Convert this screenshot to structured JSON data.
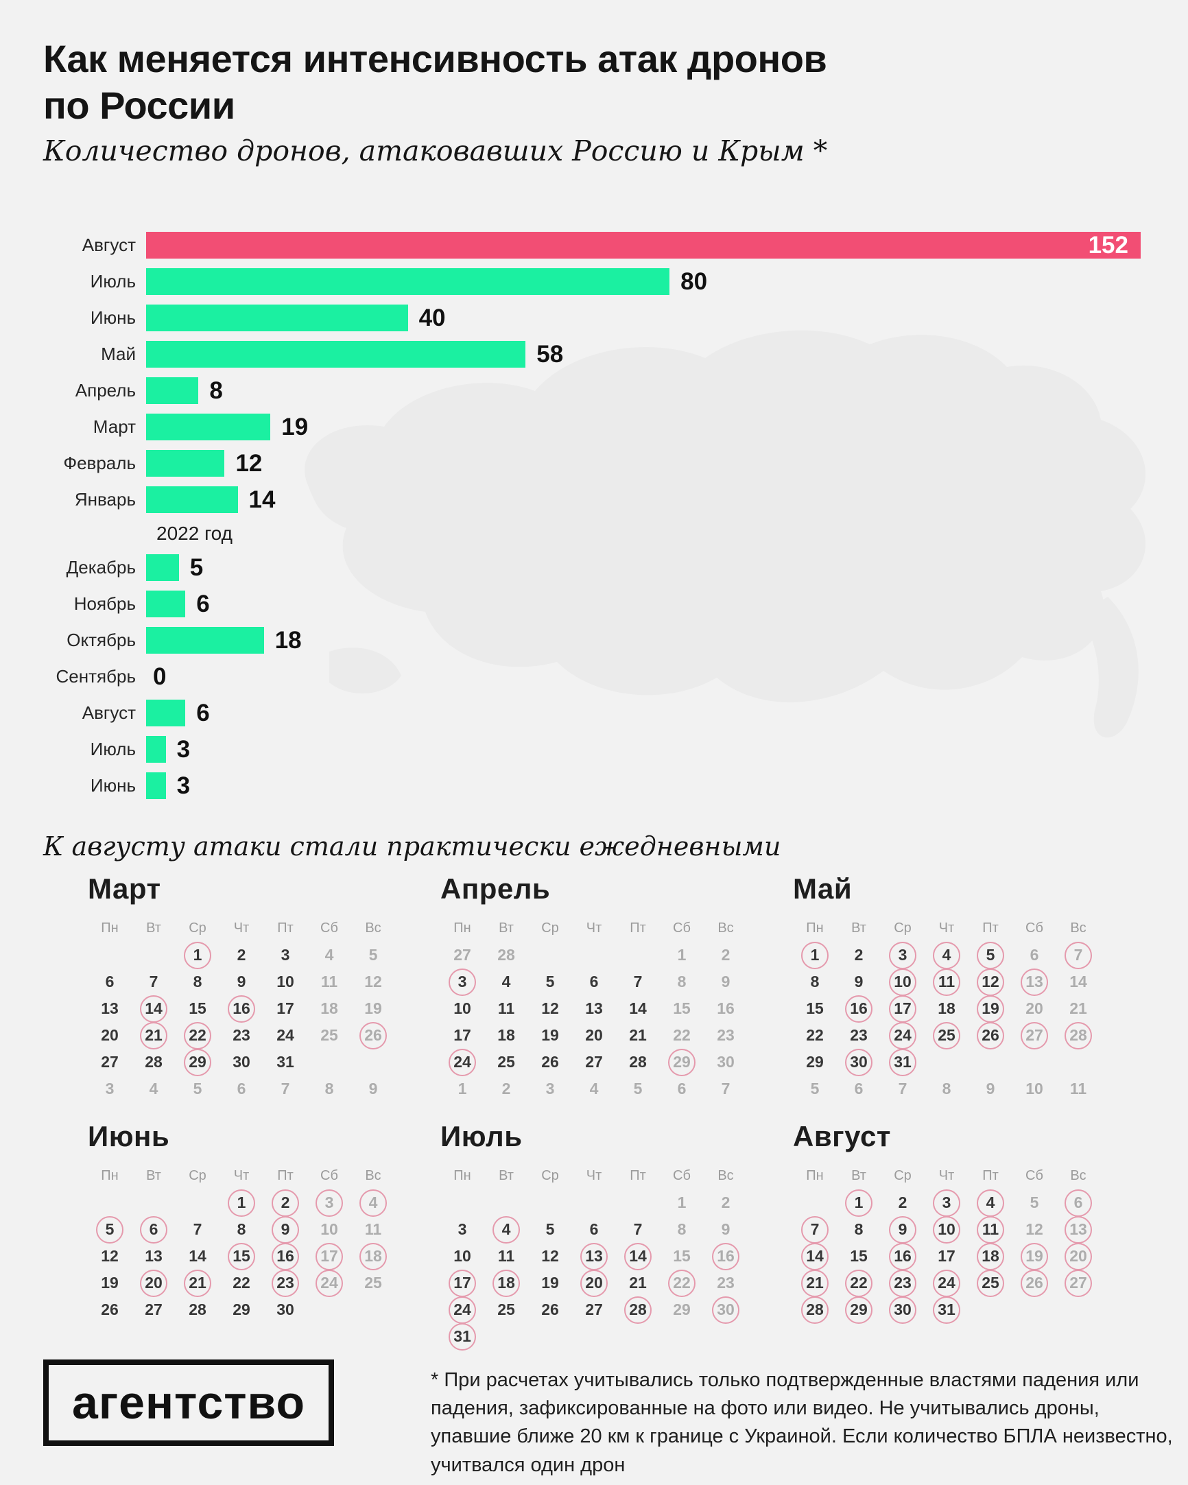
{
  "title": "Как меняется интенсивность атак дронов по России",
  "subtitle": "Количество дронов, атаковавших Россию и Крым *",
  "chart_data": {
    "type": "bar",
    "orientation": "horizontal",
    "title": "Как меняется интенсивность атак дронов по России",
    "xlabel": "",
    "ylabel": "",
    "xlim": [
      0,
      152
    ],
    "grid": false,
    "bar_color": "#1bf0a1",
    "highlight_color": "#f24e74",
    "categories": [
      "Август",
      "Июль",
      "Июнь",
      "Май",
      "Апрель",
      "Март",
      "Февраль",
      "Январь",
      "Декабрь",
      "Ноябрь",
      "Октябрь",
      "Сентябрь",
      "Август",
      "Июль",
      "Июнь"
    ],
    "values": [
      152,
      80,
      40,
      58,
      8,
      19,
      12,
      14,
      5,
      6,
      18,
      0,
      6,
      3,
      3
    ],
    "year_divider_label": "2022 год",
    "bars": [
      {
        "label": "Август",
        "value": 152,
        "highlight": true,
        "value_inside": true
      },
      {
        "label": "Июль",
        "value": 80
      },
      {
        "label": "Июнь",
        "value": 40
      },
      {
        "label": "Май",
        "value": 58
      },
      {
        "label": "Апрель",
        "value": 8
      },
      {
        "label": "Март",
        "value": 19
      },
      {
        "label": "Февраль",
        "value": 12
      },
      {
        "label": "Январь",
        "value": 14
      },
      {
        "divider": "2022 год"
      },
      {
        "label": "Декабрь",
        "value": 5
      },
      {
        "label": "Ноябрь",
        "value": 6
      },
      {
        "label": "Октябрь",
        "value": 18
      },
      {
        "label": "Сентябрь",
        "value": 0
      },
      {
        "label": "Август",
        "value": 6
      },
      {
        "label": "Июль",
        "value": 3
      },
      {
        "label": "Июнь",
        "value": 3
      }
    ]
  },
  "note": "К августу атаки стали практически ежедневными",
  "calendars": {
    "weekdays": [
      "Пн",
      "Вт",
      "Ср",
      "Чт",
      "Пт",
      "Сб",
      "Вс"
    ],
    "circle_color": "#e59aad",
    "months": [
      {
        "title": "Март",
        "weeks": [
          [
            "",
            "",
            "1c",
            "2",
            "3",
            "4g",
            "5g"
          ],
          [
            "6",
            "7",
            "8",
            "9",
            "10",
            "11g",
            "12g"
          ],
          [
            "13",
            "14c",
            "15",
            "16c",
            "17",
            "18g",
            "19g"
          ],
          [
            "20",
            "21c",
            "22c",
            "23",
            "24",
            "25g",
            "26cg"
          ],
          [
            "27",
            "28",
            "29c",
            "30",
            "31",
            "",
            ""
          ],
          [
            "3g",
            "4g",
            "5g",
            "6g",
            "7g",
            "8g",
            "9g"
          ]
        ]
      },
      {
        "title": "Апрель",
        "weeks": [
          [
            "27g",
            "28g",
            "",
            "",
            "",
            "1g",
            "2g"
          ],
          [
            "3c",
            "4",
            "5",
            "6",
            "7",
            "8g",
            "9g"
          ],
          [
            "10",
            "11",
            "12",
            "13",
            "14",
            "15g",
            "16g"
          ],
          [
            "17",
            "18",
            "19",
            "20",
            "21",
            "22g",
            "23g"
          ],
          [
            "24c",
            "25",
            "26",
            "27",
            "28",
            "29cg",
            "30g"
          ],
          [
            "1g",
            "2g",
            "3g",
            "4g",
            "5g",
            "6g",
            "7g"
          ]
        ]
      },
      {
        "title": "Май",
        "weeks": [
          [
            "1c",
            "2",
            "3c",
            "4c",
            "5c",
            "6g",
            "7cg"
          ],
          [
            "8",
            "9",
            "10c",
            "11c",
            "12c",
            "13cg",
            "14g"
          ],
          [
            "15",
            "16c",
            "17c",
            "18",
            "19c",
            "20g",
            "21g"
          ],
          [
            "22",
            "23",
            "24c",
            "25c",
            "26c",
            "27cg",
            "28cg"
          ],
          [
            "29",
            "30c",
            "31c",
            "",
            "",
            "",
            ""
          ],
          [
            "5g",
            "6g",
            "7g",
            "8g",
            "9g",
            "10g",
            "11g"
          ]
        ]
      },
      {
        "title": "Июнь",
        "weeks": [
          [
            "",
            "",
            "",
            "1c",
            "2c",
            "3cg",
            "4cg"
          ],
          [
            "5c",
            "6c",
            "7",
            "8",
            "9c",
            "10g",
            "11g"
          ],
          [
            "12",
            "13",
            "14",
            "15c",
            "16c",
            "17cg",
            "18cg"
          ],
          [
            "19",
            "20c",
            "21c",
            "22",
            "23c",
            "24cg",
            "25g"
          ],
          [
            "26",
            "27",
            "28",
            "29",
            "30",
            "",
            ""
          ]
        ]
      },
      {
        "title": "Июль",
        "weeks": [
          [
            "",
            "",
            "",
            "",
            "",
            "1g",
            "2g"
          ],
          [
            "3",
            "4c",
            "5",
            "6",
            "7",
            "8g",
            "9g"
          ],
          [
            "10",
            "11",
            "12",
            "13c",
            "14c",
            "15g",
            "16cg"
          ],
          [
            "17c",
            "18c",
            "19",
            "20c",
            "21",
            "22cg",
            "23g"
          ],
          [
            "24c",
            "25",
            "26",
            "27",
            "28c",
            "29g",
            "30cg"
          ],
          [
            "31c",
            "",
            "",
            "",
            "",
            "",
            ""
          ]
        ]
      },
      {
        "title": "Август",
        "weeks": [
          [
            "",
            "1c",
            "2",
            "3c",
            "4c",
            "5g",
            "6cg"
          ],
          [
            "7c",
            "8",
            "9c",
            "10c",
            "11c",
            "12g",
            "13cg"
          ],
          [
            "14c",
            "15",
            "16c",
            "17",
            "18c",
            "19cg",
            "20cg"
          ],
          [
            "21c",
            "22c",
            "23c",
            "24c",
            "25c",
            "26cg",
            "27cg"
          ],
          [
            "28c",
            "29c",
            "30c",
            "31c",
            "",
            "",
            ""
          ]
        ]
      }
    ]
  },
  "logo": "агентство",
  "footnote": "* При расчетах учитывались только подтвержденные властями падения или падения, зафиксированные на фото или видео. Не учитывались дроны, упавшие ближе 20 км к границе с Украиной. Если количество БПЛА неизвестно, учитвался один дрон"
}
